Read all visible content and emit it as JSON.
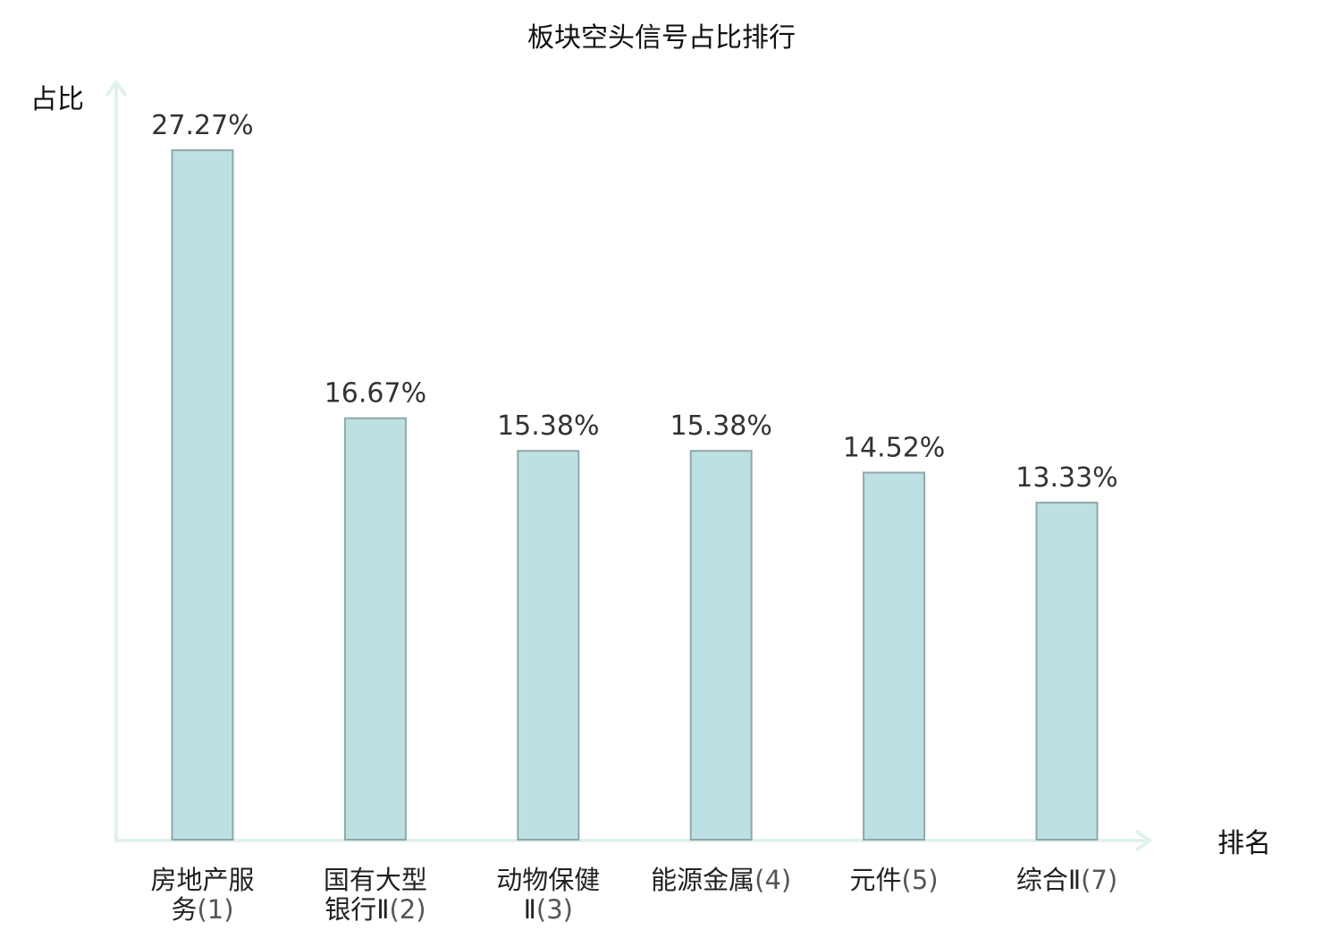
{
  "chart_data": {
    "type": "bar",
    "title": "板块空头信号占比排行",
    "ylabel": "占比",
    "xlabel": "排名",
    "categories": [
      {
        "lines": [
          "房地产服",
          "务"
        ],
        "rank": "(1)",
        "highlight": false
      },
      {
        "lines": [
          "国有大型",
          "银行Ⅱ"
        ],
        "rank": "(2)",
        "highlight": false
      },
      {
        "lines": [
          "动物保健",
          "Ⅱ"
        ],
        "rank": "(3)",
        "highlight": false
      },
      {
        "lines": [
          "能源金属"
        ],
        "rank": "(4)",
        "highlight": false
      },
      {
        "lines": [
          "元件"
        ],
        "rank": "(5)",
        "highlight": false
      },
      {
        "lines": [
          "综合Ⅱ"
        ],
        "rank": "(7)",
        "highlight": true
      }
    ],
    "values": [
      27.27,
      16.67,
      15.38,
      15.38,
      14.52,
      13.33
    ],
    "value_labels": [
      "27.27%",
      "16.67%",
      "15.38%",
      "15.38%",
      "14.52%",
      "13.33%"
    ],
    "ylim": [
      0,
      27.27
    ],
    "grid": false,
    "legend": "none"
  },
  "colors": {
    "bar_fill": "#bde0e3",
    "bar_stroke": "#8fa8aa",
    "axis": "#e0f2ef",
    "highlight": "#d42020"
  }
}
